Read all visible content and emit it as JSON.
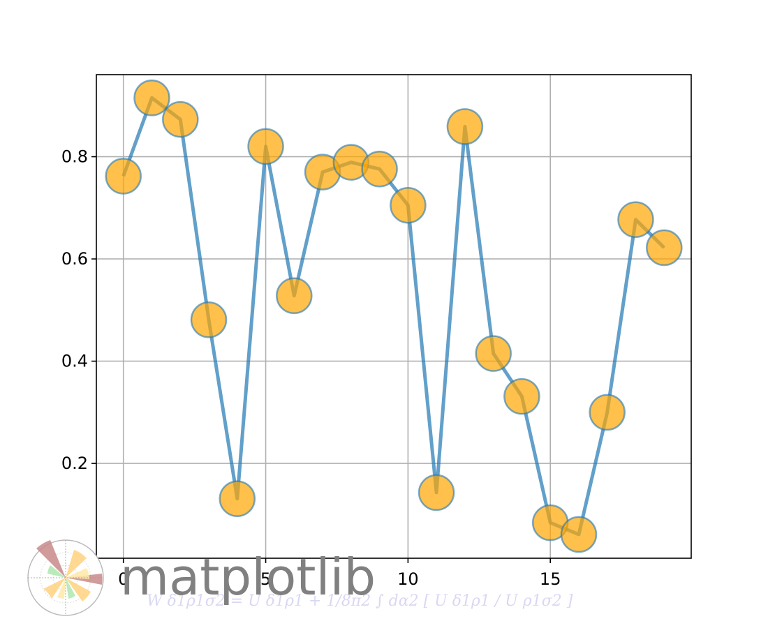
{
  "chart_data": {
    "type": "line",
    "title": "",
    "xlabel": "",
    "ylabel": "",
    "x": [
      0,
      1,
      2,
      3,
      4,
      5,
      6,
      7,
      8,
      9,
      10,
      11,
      12,
      13,
      14,
      15,
      16,
      17,
      18,
      19
    ],
    "series": [
      {
        "values": [
          0.762,
          0.915,
          0.873,
          0.481,
          0.131,
          0.82,
          0.528,
          0.77,
          0.789,
          0.776,
          0.705,
          0.143,
          0.859,
          0.415,
          0.331,
          0.084,
          0.061,
          0.3,
          0.677,
          0.622
        ],
        "line_color": "#1f77b4",
        "marker_color": "#ffa500",
        "marker_edge_color": "#1f77b4"
      }
    ],
    "xticks": [
      "0",
      "5",
      "10",
      "15"
    ],
    "yticks": [
      "0.2",
      "0.4",
      "0.6",
      "0.8"
    ],
    "xlim": [
      -0.95,
      19.95
    ],
    "ylim": [
      0.0145,
      0.9605
    ],
    "grid": true
  },
  "logo": {
    "text": "matplotlib",
    "formula": "W δ1ρ1σ2 = U δ1ρ1 + 1/8π2 ∫ dα2 [ U δ1ρ1 / U ρ1σ2 ]"
  }
}
